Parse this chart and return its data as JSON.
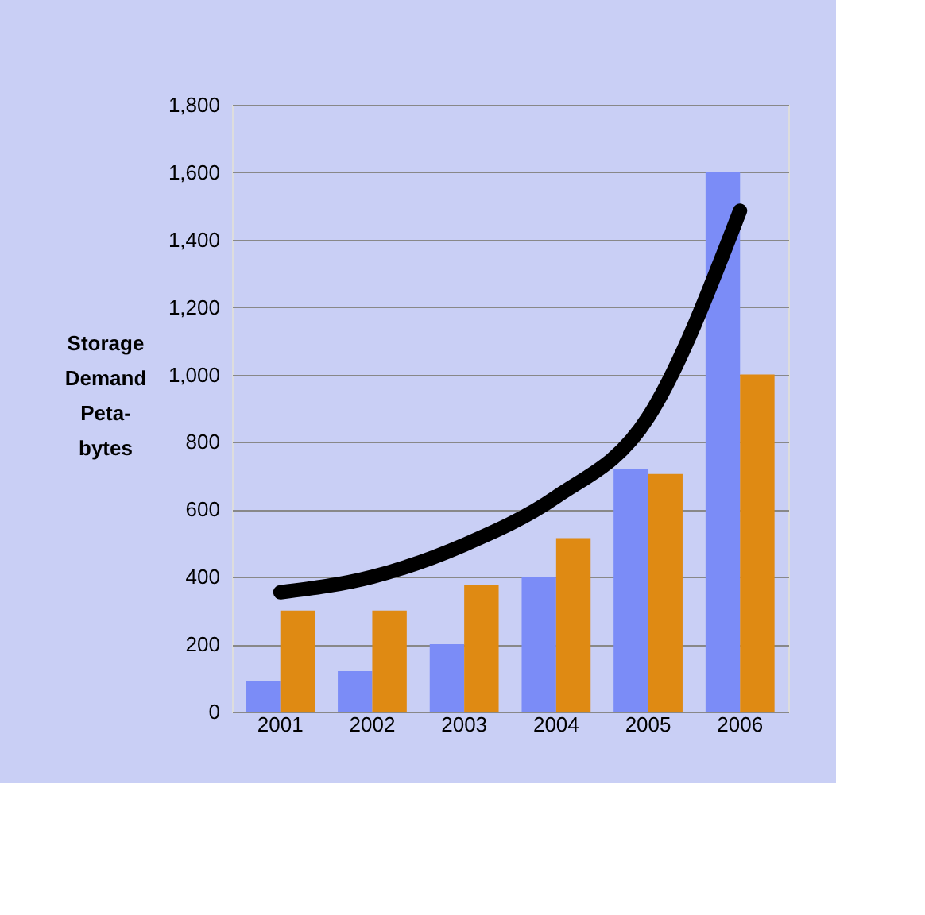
{
  "chart_data": {
    "type": "bar",
    "ylabel": "Storage\nDemand\n\nPeta-\nbytes",
    "categories": [
      "2001",
      "2002",
      "2003",
      "2004",
      "2005",
      "2006"
    ],
    "series": [
      {
        "color": "#7b8cf7",
        "values": [
          90,
          120,
          200,
          400,
          720,
          1600
        ]
      },
      {
        "color": "#df8a13",
        "values": [
          300,
          300,
          375,
          515,
          705,
          1000
        ]
      },
      {
        "type": "line",
        "color": "#000000",
        "values": [
          354,
          400,
          495,
          637,
          873,
          1486
        ]
      }
    ],
    "ylim": [
      0,
      1800
    ],
    "yticks": [
      {
        "value": 0,
        "label": "0"
      },
      {
        "value": 200,
        "label": "200"
      },
      {
        "value": 400,
        "label": "400"
      },
      {
        "value": 600,
        "label": "600"
      },
      {
        "value": 800,
        "label": "800"
      },
      {
        "value": 1000,
        "label": "1,000"
      },
      {
        "value": 1200,
        "label": "1,200"
      },
      {
        "value": 1400,
        "label": "1,400"
      },
      {
        "value": 1600,
        "label": "1,600"
      },
      {
        "value": 1800,
        "label": "1,800"
      }
    ],
    "grid": "y"
  }
}
